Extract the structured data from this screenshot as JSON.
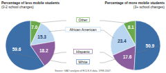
{
  "chart_data": {
    "type": "pie",
    "categories": [
      "Other",
      "African American",
      "Hispanic",
      "White"
    ],
    "colors": [
      "#6aaa4a",
      "#b9d5ef",
      "#8b5c9e",
      "#3c6fa8"
    ],
    "series": [
      {
        "name": "Percentage of less mobile students (0-2 school changes)",
        "values": [
          7.0,
          15.3,
          18.2,
          59.6
        ],
        "value_labels": [
          "7.0",
          "15.3",
          "18.2",
          "59.6"
        ]
      },
      {
        "name": "Percentage of more mobile students (3+ school changes)",
        "values": [
          8.1,
          23.4,
          17.6,
          50.9
        ],
        "value_labels": [
          "8.1",
          "23.4",
          "17.6",
          "50.9"
        ]
      }
    ],
    "data_labels": true,
    "note": "Source: GAO analysis of ECLS-K data, 1998-2007."
  }
}
